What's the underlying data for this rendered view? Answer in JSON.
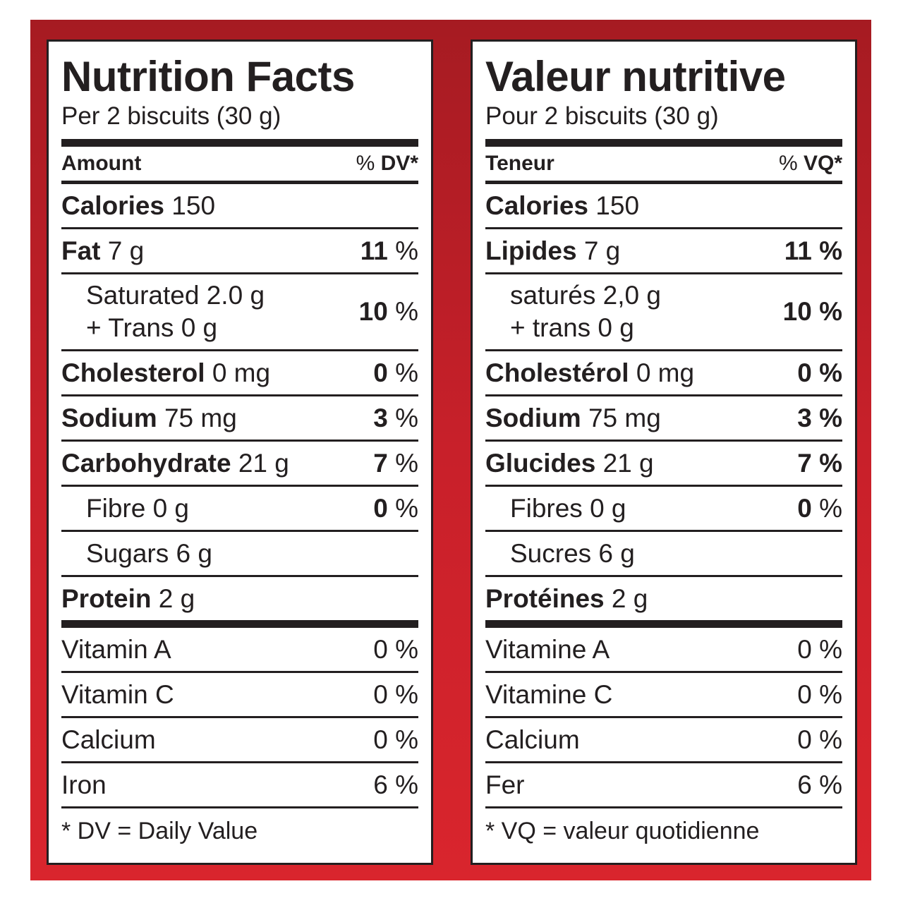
{
  "en": {
    "title": "Nutrition Facts",
    "serving": "Per 2 biscuits (30 g)",
    "amount_label": "Amount",
    "dv_prefix": "% ",
    "dv_label": "DV*",
    "calories_label": "Calories",
    "calories_value": "150",
    "fat_label": "Fat",
    "fat_value": "7 g",
    "fat_pct_num": "11",
    "saturated_line": "Saturated 2.0 g",
    "trans_line": "+ Trans 0 g",
    "sat_pct_num": "10",
    "cholesterol_label": "Cholesterol",
    "cholesterol_value": "0 mg",
    "cholesterol_pct_num": "0",
    "sodium_label": "Sodium",
    "sodium_value": "75 mg",
    "sodium_pct_num": "3",
    "carb_label": "Carbohydrate",
    "carb_value": "21 g",
    "carb_pct_num": "7",
    "fibre_line": "Fibre 0 g",
    "fibre_pct_num": "0",
    "sugars_line": "Sugars 6 g",
    "protein_label": "Protein",
    "protein_value": "2 g",
    "vitamin_a": "Vitamin A",
    "vitamin_a_pct": "0 %",
    "vitamin_c": "Vitamin C",
    "vitamin_c_pct": "0 %",
    "calcium": "Calcium",
    "calcium_pct": "0 %",
    "iron": "Iron",
    "iron_pct": "6 %",
    "footnote": "* DV = Daily Value"
  },
  "fr": {
    "title": "Valeur nutritive",
    "serving": "Pour 2 biscuits (30 g)",
    "amount_label": "Teneur",
    "dv_prefix": "% ",
    "dv_label": "VQ*",
    "calories_label": "Calories",
    "calories_value": "150",
    "fat_label": "Lipides",
    "fat_value": "7 g",
    "fat_pct_num": "11 %",
    "saturated_line": "saturés 2,0 g",
    "trans_line": "+ trans 0 g",
    "sat_pct_num": "10 %",
    "cholesterol_label": "Cholestérol",
    "cholesterol_value": "0 mg",
    "cholesterol_pct_num": "0 %",
    "sodium_label": "Sodium",
    "sodium_value": "75 mg",
    "sodium_pct_num": "3 %",
    "carb_label": "Glucides",
    "carb_value": "21 g",
    "carb_pct_num": "7 %",
    "fibre_line": "Fibres 0 g",
    "fibre_pct_num": "0",
    "sugars_line": "Sucres 6 g",
    "protein_label": "Protéines",
    "protein_value": "2 g",
    "vitamin_a": "Vitamine A",
    "vitamin_a_pct": "0 %",
    "vitamin_c": "Vitamine C",
    "vitamin_c_pct": "0 %",
    "calcium": "Calcium",
    "calcium_pct": "0 %",
    "iron": "Fer",
    "iron_pct": "6 %",
    "footnote": "* VQ = valeur quotidienne"
  },
  "percent_sign": " %",
  "colors": {
    "frame_red": "#c8202a",
    "ink": "#231f20"
  }
}
